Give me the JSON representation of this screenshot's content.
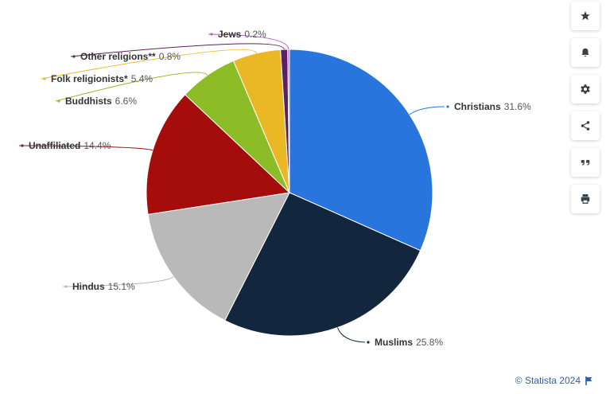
{
  "chart_data": {
    "type": "pie",
    "title": "",
    "slices": [
      {
        "label": "Christians",
        "value": 31.6,
        "value_label": "31.6%",
        "color": "#2876dd"
      },
      {
        "label": "Muslims",
        "value": 25.8,
        "value_label": "25.8%",
        "color": "#12263d"
      },
      {
        "label": "Hindus",
        "value": 15.1,
        "value_label": "15.1%",
        "color": "#b9b9b9"
      },
      {
        "label": "Unaffiliated",
        "value": 14.4,
        "value_label": "14.4%",
        "color": "#a50c0c"
      },
      {
        "label": "Buddhists",
        "value": 6.6,
        "value_label": "6.6%",
        "color": "#8cbc26"
      },
      {
        "label": "Folk religionists*",
        "value": 5.4,
        "value_label": "5.4%",
        "color": "#eab725"
      },
      {
        "label": "Other religions**",
        "value": 0.8,
        "value_label": "0.8%",
        "color": "#5b2160"
      },
      {
        "label": "Jews",
        "value": 0.2,
        "value_label": "0.2%",
        "color": "#b45cd0"
      }
    ]
  },
  "toolbar": {
    "buttons": [
      {
        "name": "favorite-button",
        "icon": "star-icon"
      },
      {
        "name": "notification-button",
        "icon": "bell-icon"
      },
      {
        "name": "settings-button",
        "icon": "gear-icon"
      },
      {
        "name": "share-button",
        "icon": "share-icon"
      },
      {
        "name": "cite-button",
        "icon": "quote-icon"
      },
      {
        "name": "print-button",
        "icon": "printer-icon"
      }
    ]
  },
  "credit": {
    "text": "© Statista 2024"
  }
}
